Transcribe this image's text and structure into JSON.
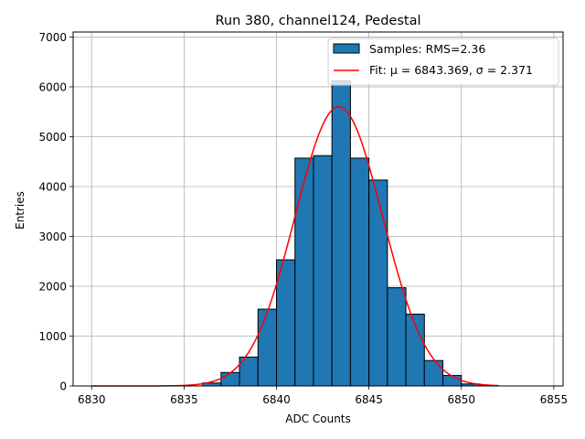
{
  "chart_data": {
    "type": "bar",
    "title": "Run 380, channel124, Pedestal",
    "xlabel": "ADC Counts",
    "ylabel": "Entries",
    "xlim": [
      6829,
      6855.5
    ],
    "ylim": [
      0,
      7100
    ],
    "xticks": [
      6830,
      6835,
      6840,
      6845,
      6850,
      6855
    ],
    "yticks": [
      0,
      1000,
      2000,
      3000,
      4000,
      5000,
      6000,
      7000
    ],
    "grid": true,
    "legend_position": "top-right",
    "bins": [
      {
        "x0": 6836,
        "x1": 6837,
        "value": 60
      },
      {
        "x0": 6837,
        "x1": 6838,
        "value": 270
      },
      {
        "x0": 6838,
        "x1": 6839,
        "value": 580
      },
      {
        "x0": 6839,
        "x1": 6840,
        "value": 1540
      },
      {
        "x0": 6840,
        "x1": 6841,
        "value": 2530
      },
      {
        "x0": 6841,
        "x1": 6842,
        "value": 4570
      },
      {
        "x0": 6842,
        "x1": 6843,
        "value": 4620
      },
      {
        "x0": 6843,
        "x1": 6844,
        "value": 6120
      },
      {
        "x0": 6844,
        "x1": 6845,
        "value": 4570
      },
      {
        "x0": 6845,
        "x1": 6846,
        "value": 4130
      },
      {
        "x0": 6846,
        "x1": 6847,
        "value": 1970
      },
      {
        "x0": 6847,
        "x1": 6848,
        "value": 1440
      },
      {
        "x0": 6848,
        "x1": 6849,
        "value": 510
      },
      {
        "x0": 6849,
        "x1": 6850,
        "value": 210
      },
      {
        "x0": 6850,
        "x1": 6851,
        "value": 40
      },
      {
        "x0": 6851,
        "x1": 6852,
        "value": 10
      }
    ],
    "fit": {
      "mu": 6843.369,
      "sigma": 2.371,
      "amplitude": 5600,
      "x_range": [
        6830,
        6852
      ]
    },
    "series": [
      {
        "name": "Samples: RMS=2.36",
        "color": "#1f77b4"
      },
      {
        "name": "Fit: μ = 6843.369, σ = 2.371",
        "color": "#ff0000"
      }
    ]
  }
}
